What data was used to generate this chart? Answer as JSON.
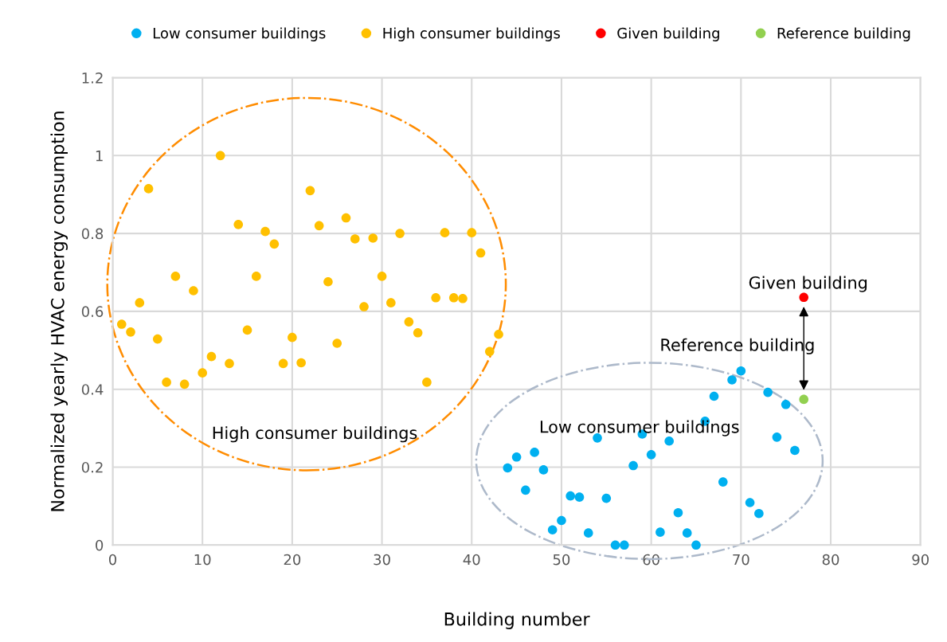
{
  "chart_data": {
    "type": "scatter",
    "xlabel": "Building number",
    "ylabel": "Normalized yearly HVAC energy consumption",
    "xlim": [
      0,
      90
    ],
    "xticks": [
      0,
      10,
      20,
      30,
      40,
      50,
      60,
      70,
      80,
      90
    ],
    "ylim": [
      0,
      1.2
    ],
    "yticks": [
      0,
      0.2,
      0.4,
      0.6,
      0.8,
      1,
      1.2
    ],
    "grid": true,
    "legend": "top",
    "marker": "circle",
    "series": [
      {
        "name": "Low consumer buildings",
        "color": "#00b0f0",
        "x": [
          44,
          45,
          46,
          47,
          48,
          49,
          50,
          51,
          52,
          53,
          54,
          55,
          56,
          57,
          58,
          59,
          60,
          61,
          62,
          63,
          64,
          65,
          66,
          67,
          68,
          69,
          70,
          71,
          72,
          73,
          74,
          75,
          76
        ],
        "values": [
          0.198,
          0.226,
          0.141,
          0.238,
          0.193,
          0.039,
          0.063,
          0.126,
          0.123,
          0.031,
          0.275,
          0.12,
          0,
          0,
          0.204,
          0.285,
          0.232,
          0.033,
          0.267,
          0.083,
          0.031,
          0,
          0.318,
          0.382,
          0.162,
          0.424,
          0.447,
          0.109,
          0.081,
          0.392,
          0.277,
          0.361,
          0.243
        ]
      },
      {
        "name": "High consumer buildings",
        "color": "#ffc000",
        "x": [
          1,
          2,
          3,
          4,
          5,
          6,
          7,
          8,
          9,
          10,
          11,
          12,
          13,
          14,
          15,
          16,
          17,
          18,
          19,
          20,
          21,
          22,
          23,
          24,
          25,
          26,
          27,
          28,
          29,
          30,
          31,
          32,
          33,
          34,
          35,
          36,
          37,
          38,
          39,
          40,
          41,
          42,
          43
        ],
        "values": [
          0.567,
          0.547,
          0.622,
          0.915,
          0.529,
          0.418,
          0.69,
          0.413,
          0.653,
          0.442,
          0.484,
          1.0,
          0.466,
          0.823,
          0.552,
          0.69,
          0.805,
          0.773,
          0.466,
          0.533,
          0.468,
          0.91,
          0.82,
          0.676,
          0.518,
          0.84,
          0.786,
          0.612,
          0.788,
          0.69,
          0.622,
          0.8,
          0.573,
          0.545,
          0.418,
          0.635,
          0.802,
          0.635,
          0.633,
          0.802,
          0.75,
          0.497,
          0.541
        ]
      },
      {
        "name": "Given building",
        "color": "#ff0000",
        "x": [
          77
        ],
        "values": [
          0.636
        ]
      },
      {
        "name": "Reference building",
        "color": "#92d050",
        "x": [
          77
        ],
        "values": [
          0.374
        ]
      }
    ],
    "annotations": [
      "High consumer buildings",
      "Low consumer buildings",
      "Given building",
      "Reference building"
    ]
  }
}
